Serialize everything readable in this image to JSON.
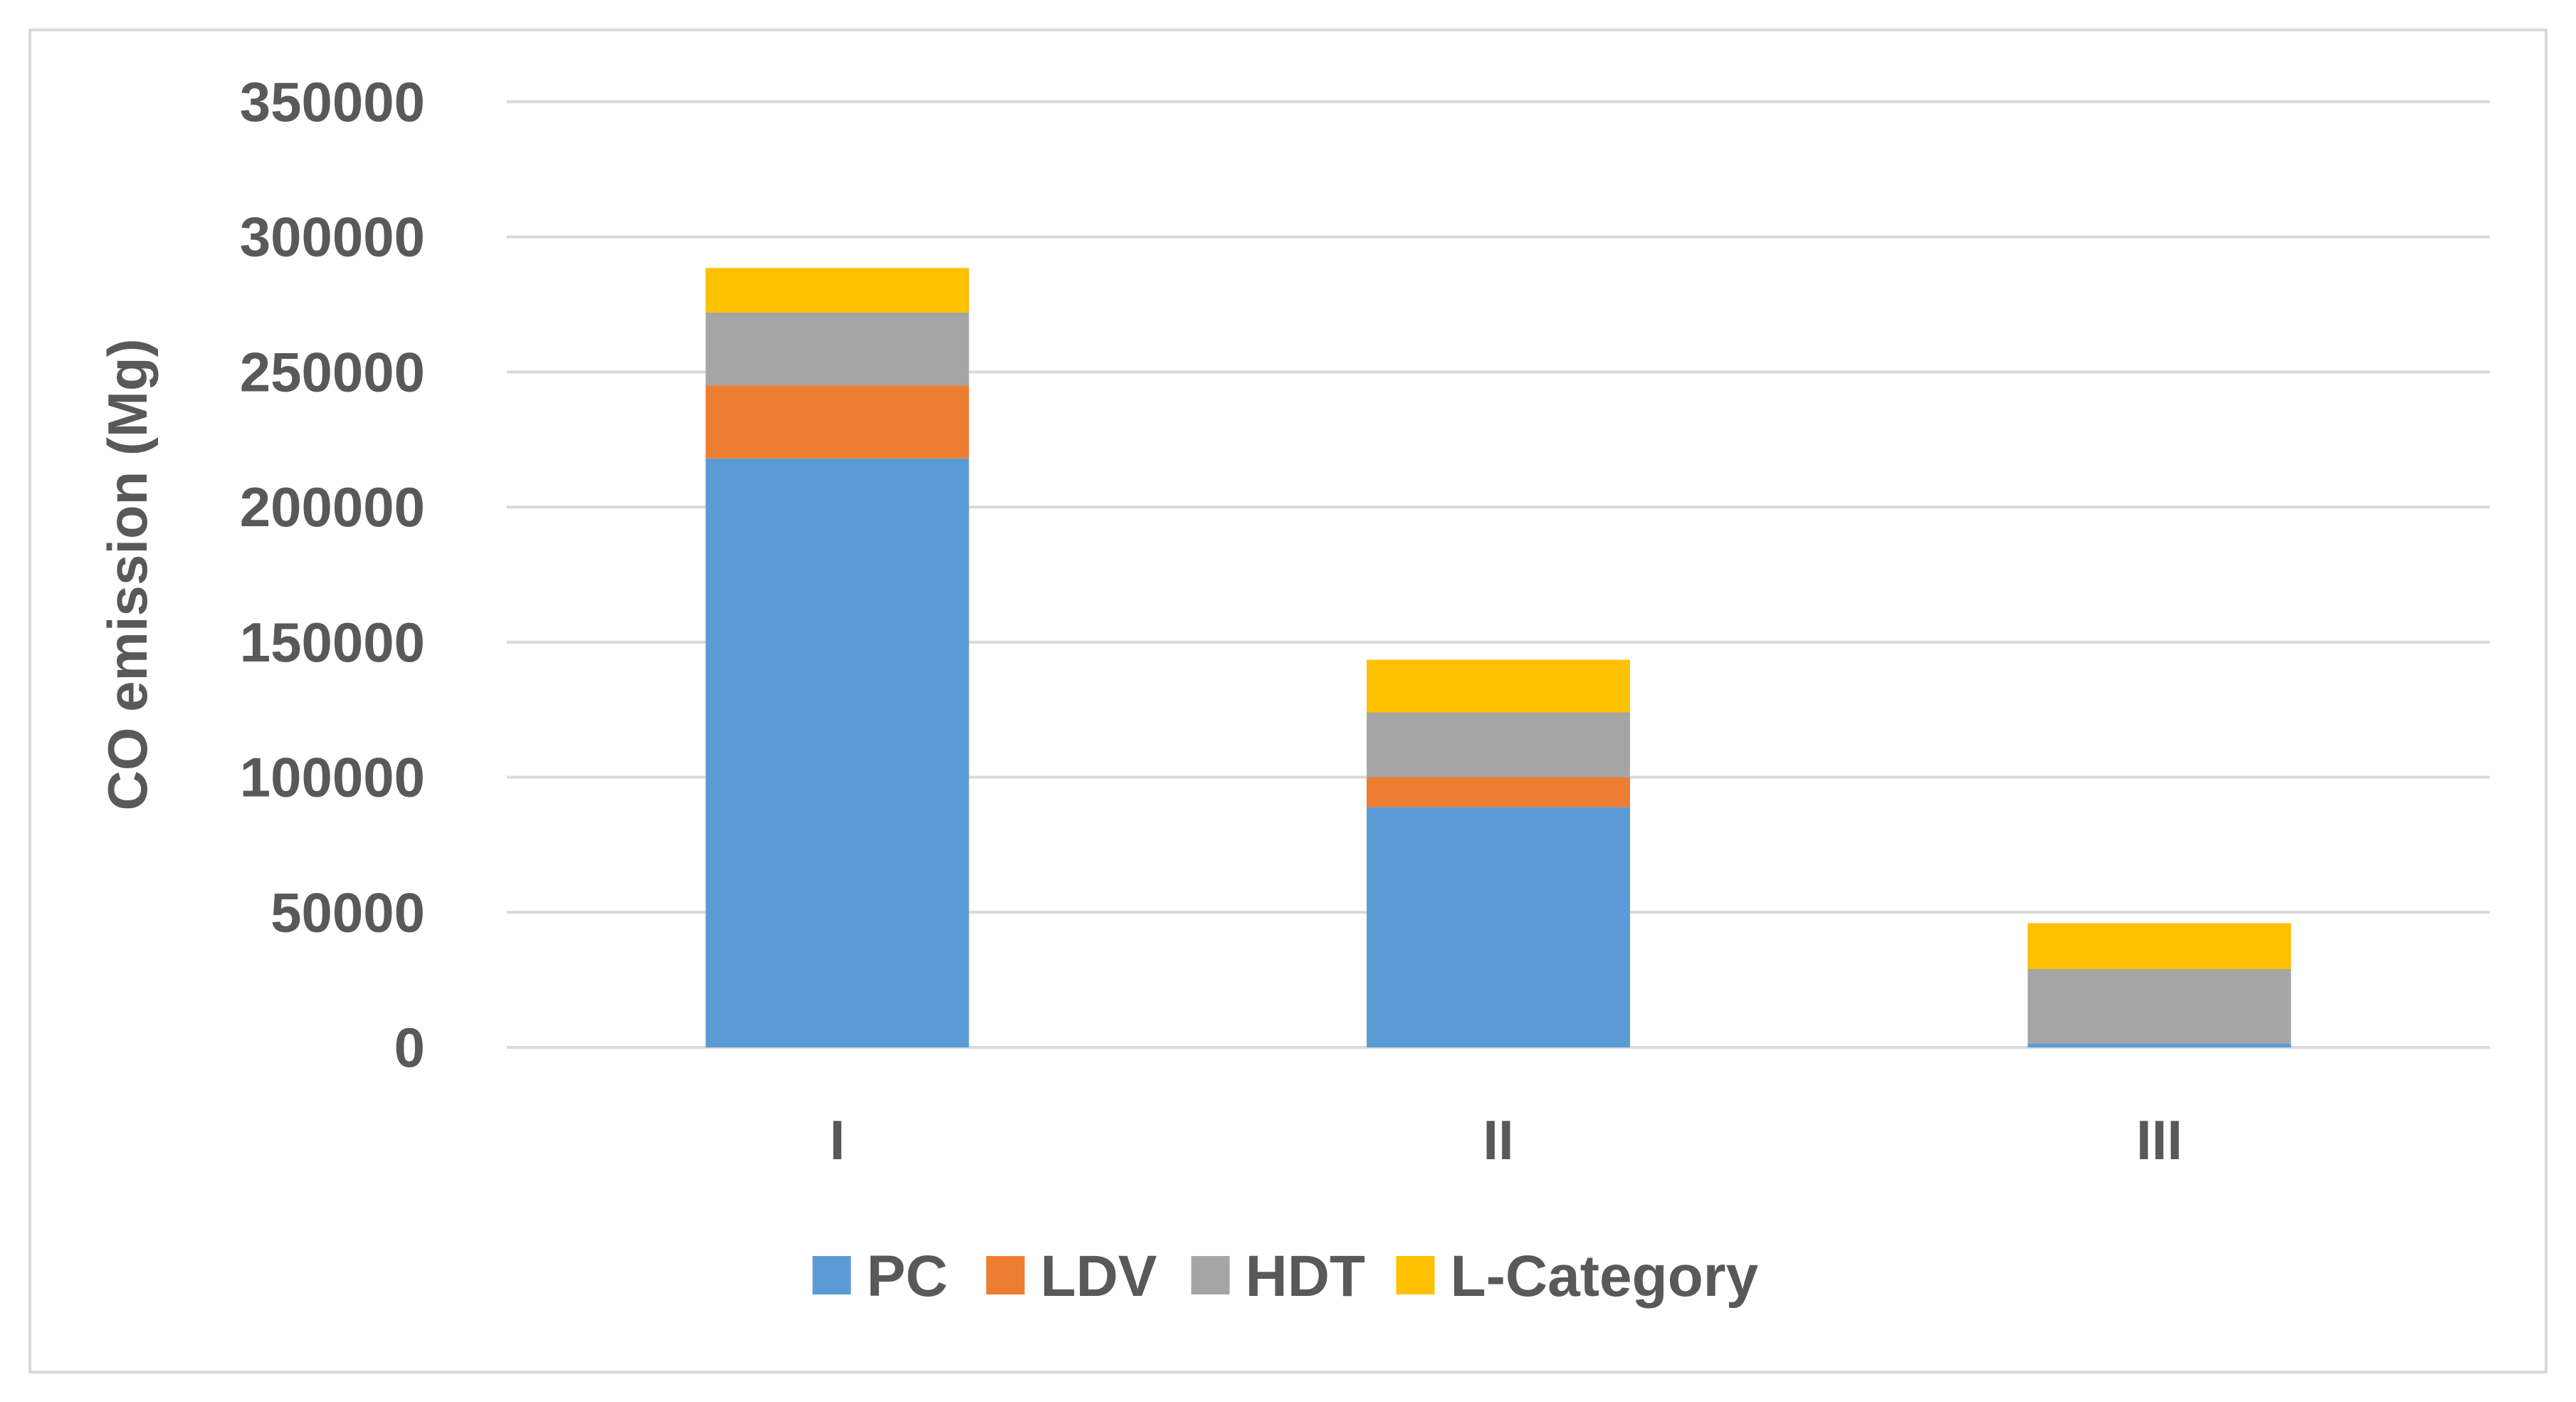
{
  "chart_data": {
    "type": "bar",
    "stacked": true,
    "title": "",
    "xlabel": "",
    "ylabel": "CO emission (Mg)",
    "ylim": [
      0,
      350000
    ],
    "yticks": [
      0,
      50000,
      100000,
      150000,
      200000,
      250000,
      300000,
      350000
    ],
    "grid": true,
    "legend_position": "bottom",
    "categories": [
      "I",
      "II",
      "III"
    ],
    "series": [
      {
        "name": "PC",
        "color": "#5b9bd5",
        "values": [
          218000,
          89000,
          1500
        ]
      },
      {
        "name": "LDV",
        "color": "#ed7d31",
        "values": [
          27000,
          11000,
          0
        ]
      },
      {
        "name": "HDT",
        "color": "#a5a5a5",
        "values": [
          27000,
          24000,
          27500
        ]
      },
      {
        "name": "L-Category",
        "color": "#ffc000",
        "values": [
          16500,
          19500,
          17000
        ]
      }
    ]
  }
}
